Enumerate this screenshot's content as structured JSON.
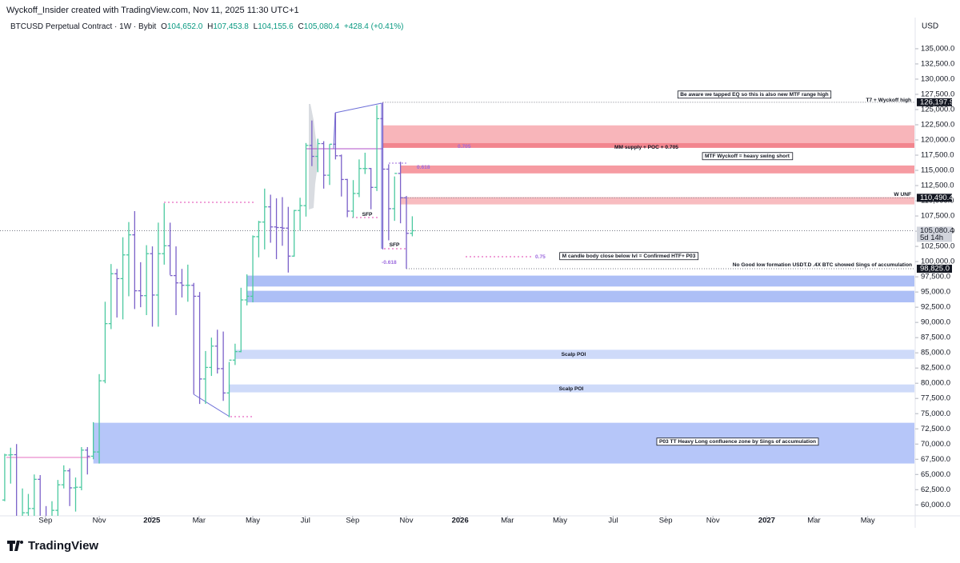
{
  "header": "Wyckoff_Insider created with TradingView.com, Nov 11, 2025 11:30 UTC+1",
  "legend": {
    "symbol": "BTCUSD Perpetual Contract · 1W · Bybit",
    "fields": [
      {
        "key": "O",
        "value": "104,652.0"
      },
      {
        "key": "H",
        "value": "107,453.8"
      },
      {
        "key": "L",
        "value": "104,155.6"
      },
      {
        "key": "C",
        "value": "105,080.4"
      }
    ],
    "change": "+428.4 (+0.41%)"
  },
  "brand": "TradingView",
  "chart_data": {
    "type": "ohlc",
    "currency": "USD",
    "up_color": "#4cc9a0",
    "down_color": "#7b61c9",
    "xlim": [
      -0.8,
      154
    ],
    "ylim": [
      58200,
      136700
    ],
    "xticks": [
      {
        "value": 6.9,
        "label": "Sep"
      },
      {
        "value": 16,
        "label": "Nov"
      },
      {
        "value": 24.9,
        "label": "2025"
      },
      {
        "value": 32.9,
        "label": "Mar"
      },
      {
        "value": 42,
        "label": "May"
      },
      {
        "value": 50.9,
        "label": "Jul"
      },
      {
        "value": 58.9,
        "label": "Sep"
      },
      {
        "value": 68,
        "label": "Nov"
      },
      {
        "value": 77.1,
        "label": "2026"
      },
      {
        "value": 85.1,
        "label": "Mar"
      },
      {
        "value": 94,
        "label": "May"
      },
      {
        "value": 103,
        "label": "Jul"
      },
      {
        "value": 111.9,
        "label": "Sep"
      },
      {
        "value": 119.9,
        "label": "Nov"
      },
      {
        "value": 129,
        "label": "2027"
      },
      {
        "value": 137,
        "label": "Mar"
      },
      {
        "value": 146.1,
        "label": "May"
      }
    ],
    "yticks": [
      {
        "value": 60000,
        "label": "60,000.0"
      },
      {
        "value": 62500,
        "label": "62,500.0"
      },
      {
        "value": 65000,
        "label": "65,000.0"
      },
      {
        "value": 67500,
        "label": "67,500.0"
      },
      {
        "value": 70000,
        "label": "70,000.0"
      },
      {
        "value": 72500,
        "label": "72,500.0"
      },
      {
        "value": 75000,
        "label": "75,000.0"
      },
      {
        "value": 77500,
        "label": "77,500.0"
      },
      {
        "value": 80000,
        "label": "80,000.0"
      },
      {
        "value": 82500,
        "label": "82,500.0"
      },
      {
        "value": 85000,
        "label": "85,000.0"
      },
      {
        "value": 87500,
        "label": "87,500.0"
      },
      {
        "value": 90000,
        "label": "90,000.0"
      },
      {
        "value": 92500,
        "label": "92,500.0"
      },
      {
        "value": 95000,
        "label": "95,000.0"
      },
      {
        "value": 97500,
        "label": "97,500.0"
      },
      {
        "value": 100000,
        "label": "100,000.0"
      },
      {
        "value": 102500,
        "label": "102,500.0"
      },
      {
        "value": 105000,
        "label": "105,000.0"
      },
      {
        "value": 107500,
        "label": "107,500.0"
      },
      {
        "value": 110000,
        "label": "110,000.0"
      },
      {
        "value": 112500,
        "label": "112,500.0"
      },
      {
        "value": 115000,
        "label": "115,000.0"
      },
      {
        "value": 117500,
        "label": "117,500.0"
      },
      {
        "value": 120000,
        "label": "120,000.0"
      },
      {
        "value": 122500,
        "label": "122,500.0"
      },
      {
        "value": 125000,
        "label": "125,000.0"
      },
      {
        "value": 127500,
        "label": "127,500.0"
      },
      {
        "value": 130000,
        "label": "130,000.0"
      },
      {
        "value": 132500,
        "label": "132,500.0"
      },
      {
        "value": 135000,
        "label": "135,000.0"
      }
    ],
    "open": [
      60800,
      68200,
      68250,
      58100,
      58700,
      59400,
      64200,
      57300,
      54800,
      59100,
      63300,
      65600,
      62800,
      62900,
      69000,
      68000,
      68700,
      80400,
      89800,
      98000,
      97200,
      101100,
      104400,
      95200,
      94400,
      101300,
      94500,
      101300,
      102600,
      97700,
      96500,
      96100,
      96100,
      94300,
      80700,
      82600,
      86100,
      82400,
      78400,
      83800,
      85200,
      93700,
      94300,
      104100,
      106500,
      109000,
      105700,
      105600,
      105500,
      100900,
      108400,
      109200,
      119100,
      117300,
      119400,
      114200,
      119300,
      117400,
      113500,
      108300,
      111200,
      115300,
      115300,
      112200,
      123500,
      115200,
      108700,
      114500,
      110500,
      104652
    ],
    "high": [
      68400,
      69400,
      70000,
      62700,
      61800,
      65000,
      64900,
      59800,
      60600,
      64100,
      66500,
      66000,
      64500,
      69500,
      69500,
      73600,
      81500,
      93400,
      99600,
      98800,
      104000,
      106500,
      108300,
      99900,
      102700,
      102500,
      106400,
      109600,
      106400,
      102500,
      98800,
      99500,
      96500,
      95000,
      85300,
      87500,
      88800,
      88500,
      83500,
      86500,
      95700,
      97900,
      104300,
      106700,
      112000,
      111000,
      110400,
      110600,
      109000,
      108500,
      110500,
      119500,
      123200,
      120200,
      119800,
      119300,
      124500,
      117600,
      113600,
      113400,
      116800,
      117900,
      115400,
      125700,
      126197.9,
      116000,
      114000,
      116400,
      110800,
      107453.8
    ],
    "low": [
      60600,
      63500,
      57100,
      49000,
      56100,
      57800,
      57200,
      52500,
      54600,
      57600,
      62700,
      59800,
      58900,
      62400,
      65000,
      67500,
      66800,
      80000,
      88900,
      90800,
      90500,
      94300,
      92200,
      92500,
      91200,
      89300,
      89300,
      99500,
      97800,
      91200,
      94100,
      93400,
      78200,
      76600,
      76600,
      81200,
      81600,
      77100,
      74400,
      83000,
      85100,
      92800,
      93300,
      100700,
      102000,
      103100,
      100400,
      102600,
      98200,
      100800,
      105100,
      107400,
      115700,
      114700,
      112000,
      112600,
      116800,
      110700,
      107300,
      107200,
      110600,
      114400,
      108600,
      111600,
      102000,
      103500,
      106700,
      106300,
      98825,
      104155.6
    ],
    "close": [
      68200,
      68250,
      58100,
      58700,
      59400,
      64200,
      57300,
      54800,
      59100,
      63300,
      65600,
      62800,
      62900,
      69000,
      68000,
      68700,
      80400,
      89800,
      98000,
      97200,
      101100,
      104400,
      95200,
      94400,
      101300,
      94500,
      101300,
      102600,
      97700,
      96500,
      96100,
      96100,
      94300,
      80700,
      82600,
      86100,
      82400,
      78400,
      83800,
      85200,
      93700,
      94300,
      104100,
      106500,
      109000,
      105700,
      105600,
      105500,
      100900,
      108400,
      109200,
      119100,
      117300,
      119400,
      114200,
      119300,
      117400,
      113500,
      108300,
      111200,
      115300,
      115300,
      112200,
      123500,
      115200,
      108700,
      114500,
      110500,
      104650,
      105080.4
    ],
    "zones": [
      {
        "top": 122400,
        "bottom": 119500,
        "start": 64,
        "color": "#f7a8ae"
      },
      {
        "top": 119500,
        "bottom": 118700,
        "start": 64,
        "color": "#f0707a"
      },
      {
        "top": 115800,
        "bottom": 114500,
        "start": 67,
        "color": "#f48a92"
      },
      {
        "top": 110600,
        "bottom": 109400,
        "start": 67,
        "color": "#f7b0b5"
      },
      {
        "top": 97700,
        "bottom": 95900,
        "start": 41,
        "color": "#9fb4f5"
      },
      {
        "top": 95200,
        "bottom": 93300,
        "start": 41,
        "color": "#9fb4f5"
      },
      {
        "top": 85500,
        "bottom": 84000,
        "start": 39,
        "color": "#c6d3f8"
      },
      {
        "top": 79800,
        "bottom": 78500,
        "start": 38,
        "color": "#c6d3f8"
      },
      {
        "top": 73500,
        "bottom": 66800,
        "start": 15,
        "color": "#a9bcf8"
      }
    ],
    "price_labels": [
      {
        "value": 126197.9,
        "label": "126,197.9",
        "start": 64,
        "style": "dark"
      },
      {
        "value": 110490.4,
        "label": "110,490.4",
        "start": 67,
        "style": "dark"
      },
      {
        "value": 105080.4,
        "label": "105,080.4",
        "start": -0.8,
        "style": "grey",
        "sub": "5d 14h"
      },
      {
        "value": 98825,
        "label": "98,825.0",
        "start": 68,
        "style": "dark"
      }
    ],
    "annotations": [
      {
        "text": "Be aware we tapped EQ so this is also new MTF range high",
        "boxed": true,
        "color": "#131722"
      },
      {
        "text": "T7 + Wyckoff high",
        "boxed": false,
        "color": "#131722"
      },
      {
        "text": "0.705",
        "boxed": false,
        "color": "#9c6ade"
      },
      {
        "text": "MM supply + POC + 0.705",
        "boxed": false,
        "color": "#131722"
      },
      {
        "text": "MTF Wyckoff = heavy swing short",
        "boxed": true,
        "color": "#131722"
      },
      {
        "text": "0.618",
        "boxed": false,
        "color": "#9c6ade"
      },
      {
        "text": "W UNF",
        "boxed": false,
        "color": "#131722"
      },
      {
        "text": "SFP",
        "boxed": false,
        "color": "#131722"
      },
      {
        "text": "SFP",
        "boxed": false,
        "color": "#131722"
      },
      {
        "text": "0.75",
        "boxed": false,
        "color": "#9c6ade"
      },
      {
        "text": "M candle body close below lvl = Confirmed HTF+ P03",
        "boxed": true,
        "color": "#131722"
      },
      {
        "text": "-0.618",
        "boxed": false,
        "color": "#9c6ade"
      },
      {
        "text": "No Good low formation USDT.D .4X BTC showed Sings of accumulation",
        "boxed": false,
        "color": "#131722"
      },
      {
        "text": "Scalp POI",
        "boxed": false,
        "color": "#131722"
      },
      {
        "text": "Scalp POI",
        "boxed": false,
        "color": "#131722"
      },
      {
        "text": "P03 TT Heavy Long confluence zone by Sings of accumulation",
        "boxed": true,
        "color": "#131722"
      }
    ]
  }
}
